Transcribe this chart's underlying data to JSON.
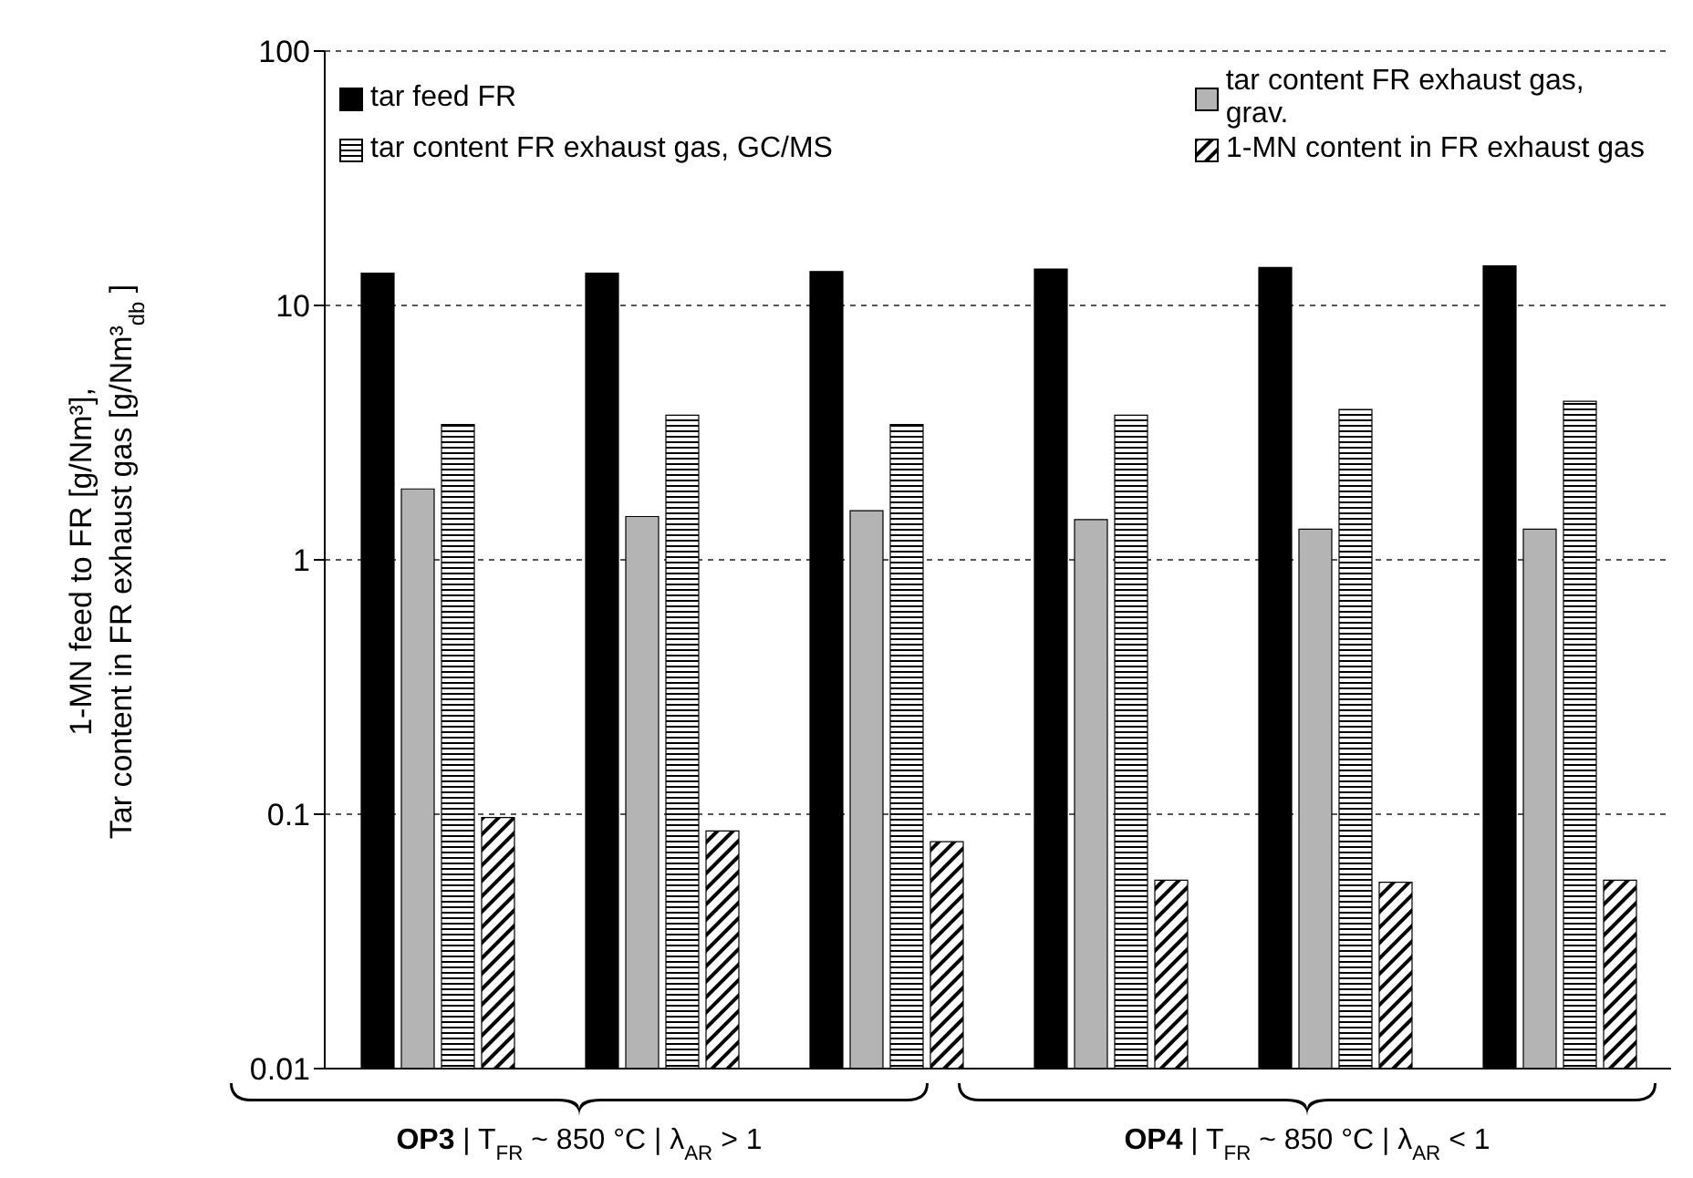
{
  "chart_data": {
    "type": "bar",
    "ylabel": "1-MN feed to FR [g/Nm³],\nTar content in FR exhaust gas [g/Nm³$_{db}$]",
    "categories": [
      null,
      null,
      null,
      null,
      null,
      null
    ],
    "series": [
      {
        "name": "tar feed FR",
        "color": "#000000",
        "values": [
          13.4,
          13.4,
          13.6,
          13.9,
          14.1,
          14.3
        ]
      },
      {
        "name": "tar content FR exhaust gas, grav.",
        "color": "#b4b4b4",
        "values": [
          1.9,
          1.48,
          1.56,
          1.44,
          1.32,
          1.32
        ]
      },
      {
        "name": "tar content FR exhaust gas, GC/MS",
        "color": "#000000",
        "values": [
          3.4,
          3.7,
          3.4,
          3.7,
          3.9,
          4.2
        ]
      },
      {
        "name": "1-MN content in FR exhaust gas",
        "color": "#000000",
        "values": [
          0.097,
          0.086,
          0.078,
          0.055,
          0.054,
          0.055
        ]
      }
    ],
    "log": true,
    "ylim": [
      0.01,
      100
    ],
    "yticks": [
      0.01,
      0.1,
      1,
      10,
      100
    ],
    "grid": "y",
    "legend": "top",
    "annotations": [
      "OP3 | T$_{FR}$ ~ 850 °C | λ$_{AR}$ > 1",
      "OP4 | T$_{FR}$ ~ 850 °C | λ$_{AR}$ < 1"
    ]
  }
}
